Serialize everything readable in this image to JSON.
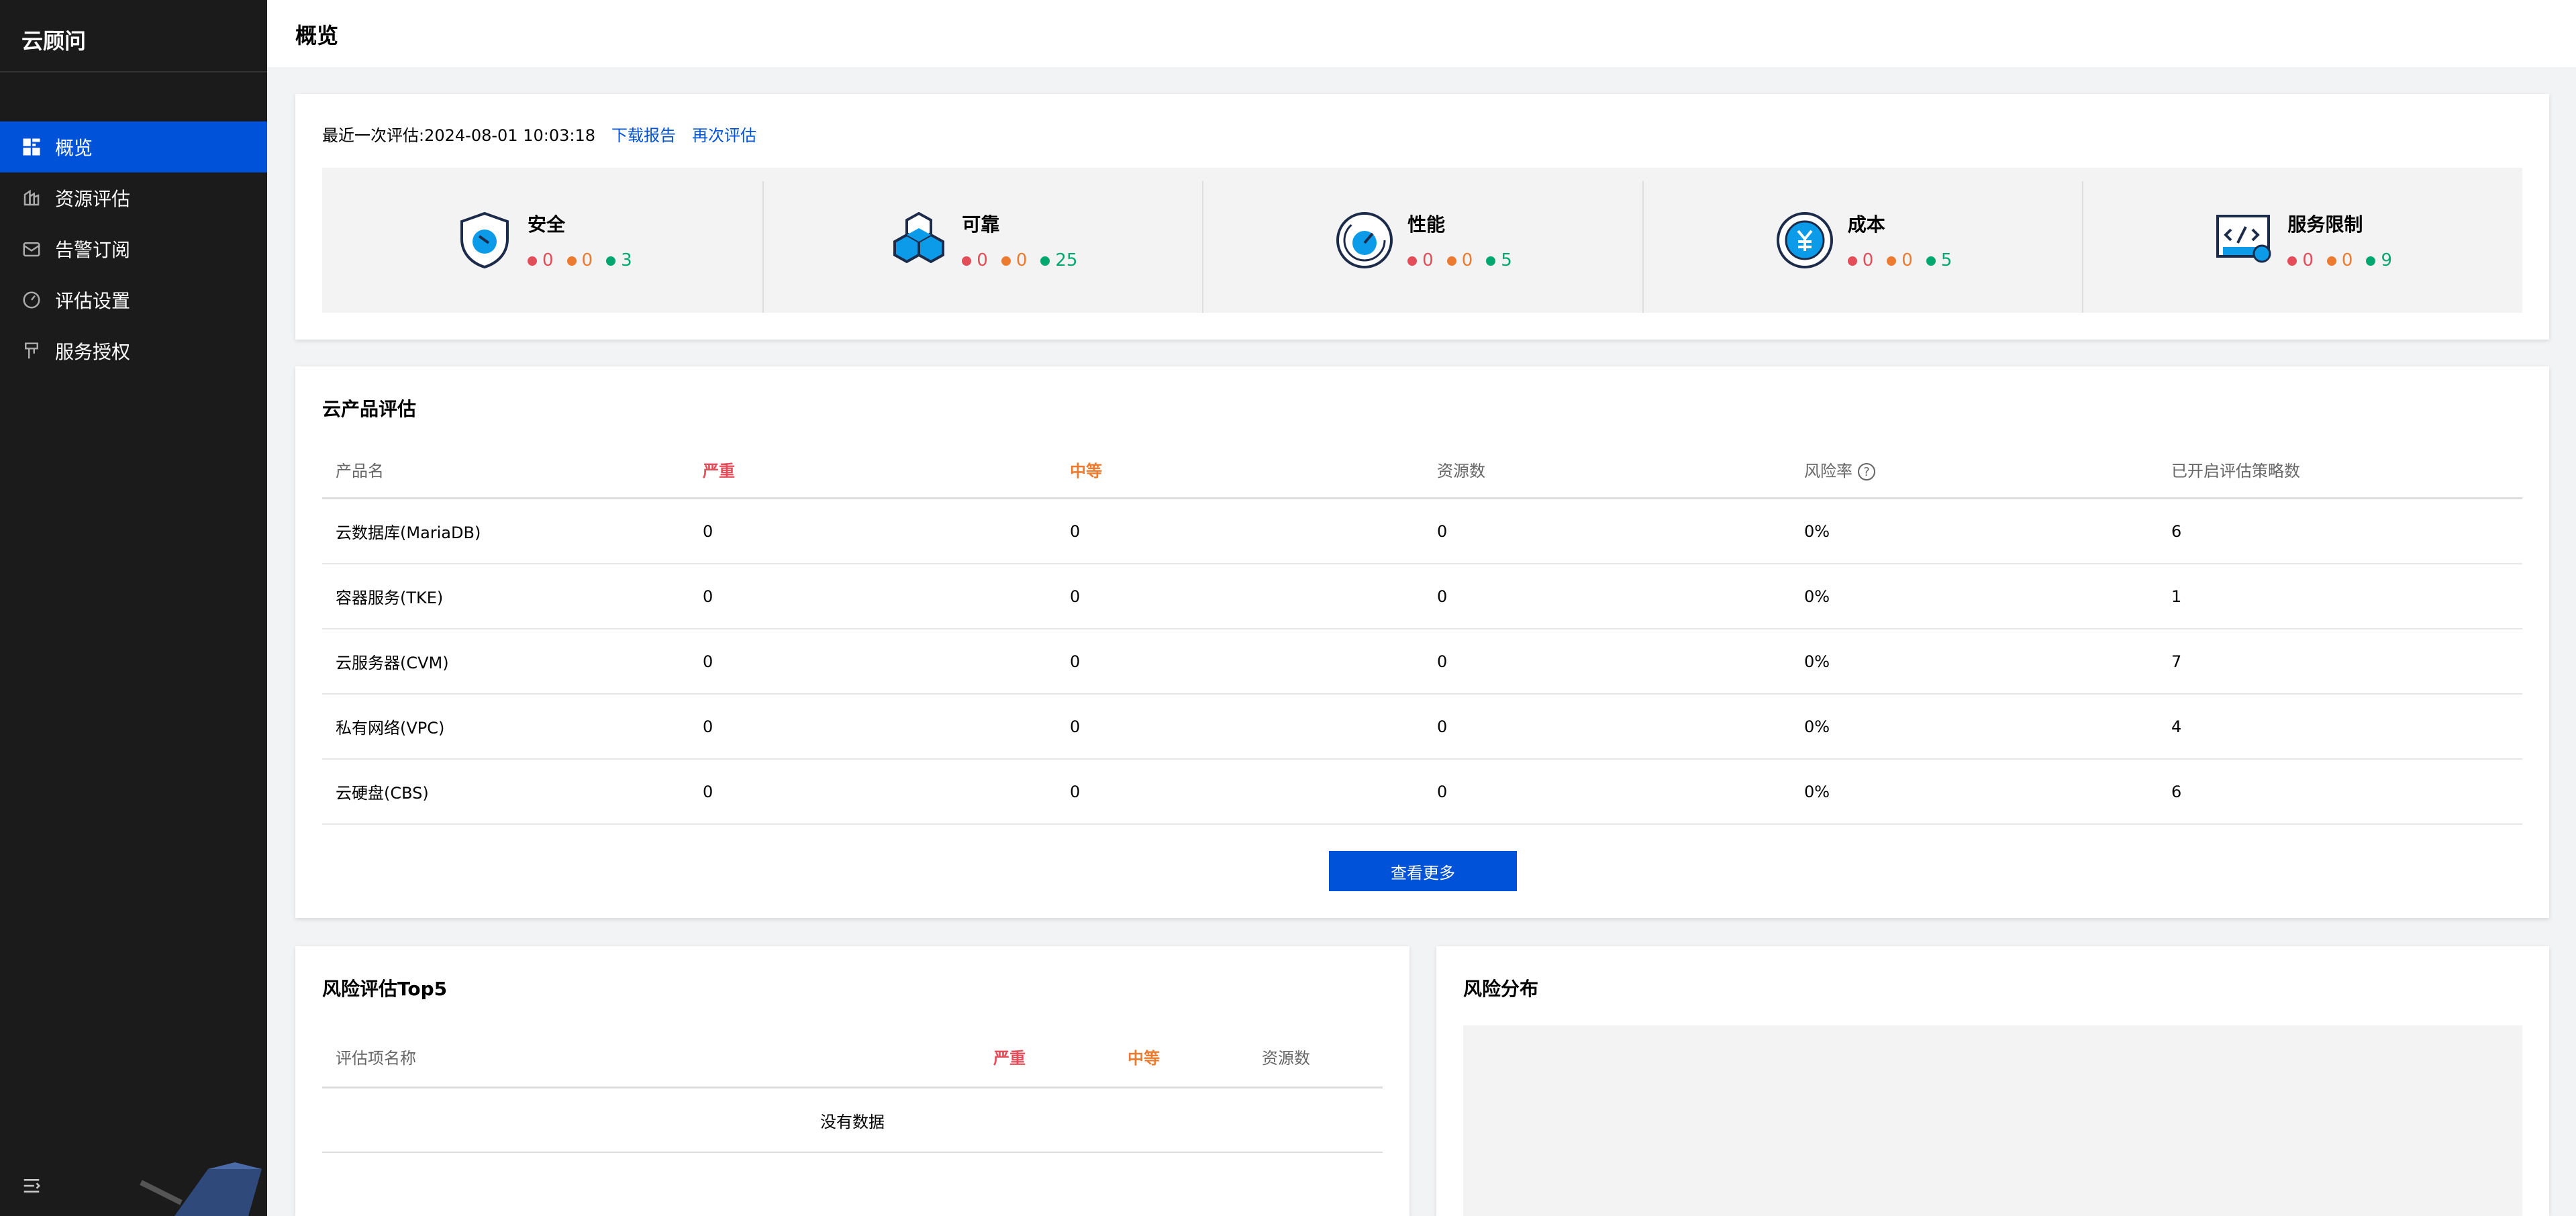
{
  "app": {
    "title": "云顾问"
  },
  "sidebar": {
    "items": [
      {
        "label": "概览",
        "icon": "dashboard-icon",
        "active": true
      },
      {
        "label": "资源评估",
        "icon": "resource-icon",
        "active": false
      },
      {
        "label": "告警订阅",
        "icon": "mail-icon",
        "active": false
      },
      {
        "label": "评估设置",
        "icon": "settings-icon",
        "active": false
      },
      {
        "label": "服务授权",
        "icon": "authorize-icon",
        "active": false
      }
    ]
  },
  "header": {
    "title": "概览"
  },
  "summary": {
    "last_label": "最近一次评估:",
    "last_time": "2024-08-01 10:03:18",
    "download_label": "下载报告",
    "reassess_label": "再次评估"
  },
  "pillars": [
    {
      "name": "安全",
      "icon": "shield-icon",
      "high": "0",
      "medium": "0",
      "low": "3"
    },
    {
      "name": "可靠",
      "icon": "cubes-icon",
      "high": "0",
      "medium": "0",
      "low": "25"
    },
    {
      "name": "性能",
      "icon": "gauge-icon",
      "high": "0",
      "medium": "0",
      "low": "5"
    },
    {
      "name": "成本",
      "icon": "yuan-icon",
      "high": "0",
      "medium": "0",
      "low": "5"
    },
    {
      "name": "服务限制",
      "icon": "code-settings-icon",
      "high": "0",
      "medium": "0",
      "low": "9"
    }
  ],
  "products": {
    "title": "云产品评估",
    "columns": [
      "产品名",
      "严重",
      "中等",
      "资源数",
      "风险率",
      "已开启评估策略数"
    ],
    "rows": [
      [
        "云数据库(MariaDB)",
        "0",
        "0",
        "0",
        "0%",
        "6"
      ],
      [
        "容器服务(TKE)",
        "0",
        "0",
        "0",
        "0%",
        "1"
      ],
      [
        "云服务器(CVM)",
        "0",
        "0",
        "0",
        "0%",
        "7"
      ],
      [
        "私有网络(VPC)",
        "0",
        "0",
        "0",
        "0%",
        "4"
      ],
      [
        "云硬盘(CBS)",
        "0",
        "0",
        "0",
        "0%",
        "6"
      ]
    ],
    "more_label": "查看更多"
  },
  "top5": {
    "title": "风险评估Top5",
    "columns": [
      "评估项名称",
      "严重",
      "中等",
      "资源数"
    ],
    "empty": "没有数据"
  },
  "distribution": {
    "title": "风险分布"
  },
  "colors": {
    "primary": "#0052d9",
    "high": "#e34d59",
    "medium": "#ed7b2f",
    "low": "#00a870",
    "sidebar": "#1b1b1b"
  }
}
